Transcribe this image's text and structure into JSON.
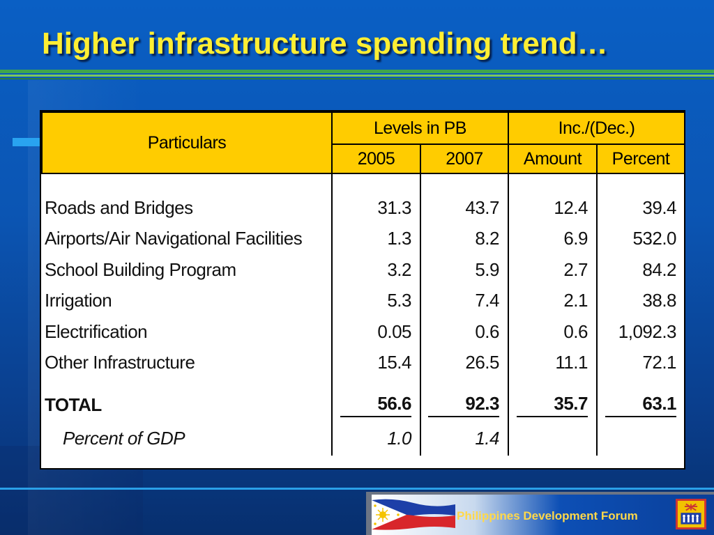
{
  "slide": {
    "title": "Higher infrastructure spending trend…"
  },
  "table": {
    "header": {
      "particulars": "Particulars",
      "levels_group": "Levels in PB",
      "inc_group": "Inc./(Dec.)",
      "col_2005": "2005",
      "col_2007": "2007",
      "col_amount": "Amount",
      "col_percent": "Percent"
    },
    "rows": [
      {
        "label": "Roads and Bridges",
        "v2005": "31.3",
        "v2007": "43.7",
        "amount": "12.4",
        "percent": "39.4"
      },
      {
        "label": "Airports/Air Navigational Facilities",
        "v2005": "1.3",
        "v2007": "8.2",
        "amount": "6.9",
        "percent": "532.0"
      },
      {
        "label": "School Building Program",
        "v2005": "3.2",
        "v2007": "5.9",
        "amount": "2.7",
        "percent": "84.2"
      },
      {
        "label": "Irrigation",
        "v2005": "5.3",
        "v2007": "7.4",
        "amount": "2.1",
        "percent": "38.8"
      },
      {
        "label": "Electrification",
        "v2005": "0.05",
        "v2007": "0.6",
        "amount": "0.6",
        "percent": "1,092.3"
      },
      {
        "label": "Other Infrastructure",
        "v2005": "15.4",
        "v2007": "26.5",
        "amount": "11.1",
        "percent": "72.1"
      }
    ],
    "total": {
      "label": "TOTAL",
      "v2005": "56.6",
      "v2007": "92.3",
      "amount": "35.7",
      "percent": "63.1"
    },
    "gdp": {
      "label": "Percent of GDP",
      "v2005": "1.0",
      "v2007": "1.4"
    }
  },
  "footer": {
    "text": "Philippines Development Forum",
    "logo_icon": "pdf-logo-icon",
    "flag_icon": "philippine-flag-icon"
  },
  "colors": {
    "title": "#ffee33",
    "header_fill": "#ffcc00",
    "background": "#0b55b3",
    "rule": "#3fa64d"
  }
}
